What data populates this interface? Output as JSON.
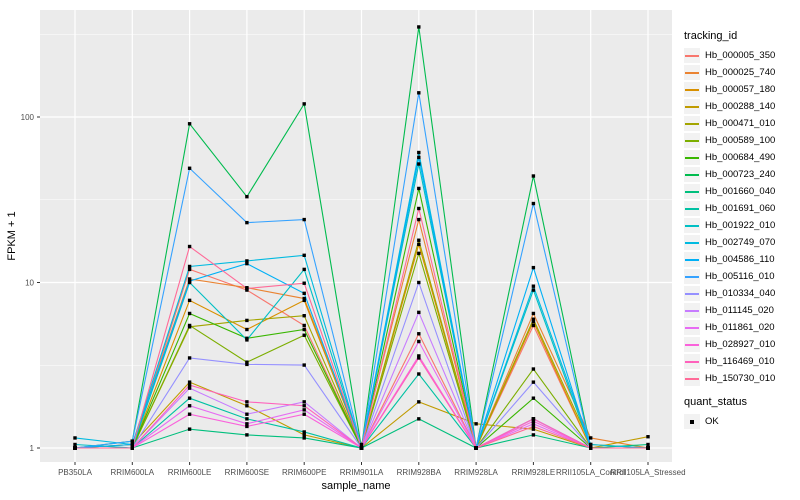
{
  "figure": {
    "bg": "#FFFFFF",
    "panel_bg": "#EBEBEB",
    "grid_color": "#FFFFFF",
    "axis_text_color": "#4D4D4D",
    "axis_title_color": "#000000",
    "marker_color": "#000000"
  },
  "chart_data": {
    "type": "line",
    "title": "",
    "xlabel": "sample_name",
    "ylabel": "FPKM + 1",
    "y_scale": "log10",
    "y_tick_labels": [
      "1",
      "10",
      "100"
    ],
    "y_ticks": [
      1,
      10,
      100
    ],
    "y_minor_ticks": [
      3.162,
      31.62,
      316.2
    ],
    "ylim": [
      0.82,
      440
    ],
    "grid": "on",
    "legend_position": "right",
    "legend_title": "tracking_id",
    "legend2_title": "quant_status",
    "legend2_items": [
      {
        "label": "OK",
        "marker": "black-square"
      }
    ],
    "marker": "black-square",
    "categories": [
      "PB350LA",
      "RRIM600LA",
      "RRIM600LE",
      "RRIM600SE",
      "RRIM600PE",
      "RRIM901LA",
      "RRIM928BA",
      "RRIM928LA",
      "RRIM928LE",
      "RRII105LA_Control",
      "RRII105LA_Stressed"
    ],
    "series": [
      {
        "name": "Hb_000005_350",
        "color": "#F8766D",
        "values": [
          1.0,
          1.0,
          12,
          9.0,
          5.5,
          1.0,
          4.9,
          1.0,
          5.5,
          1.0,
          1.0
        ]
      },
      {
        "name": "Hb_000025_740",
        "color": "#EA8331",
        "values": [
          1.0,
          1.05,
          10.5,
          9.3,
          8.0,
          1.05,
          24,
          1.0,
          6.5,
          1.15,
          1.0
        ]
      },
      {
        "name": "Hb_000057_180",
        "color": "#D89000",
        "values": [
          1.0,
          1.0,
          7.8,
          5.2,
          7.8,
          1.0,
          17,
          1.0,
          5.8,
          1.0,
          1.0
        ]
      },
      {
        "name": "Hb_000288_140",
        "color": "#C09B00",
        "values": [
          1.0,
          1.05,
          2.5,
          1.8,
          1.2,
          1.0,
          1.9,
          1.4,
          1.3,
          1.0,
          1.17
        ]
      },
      {
        "name": "Hb_000471_010",
        "color": "#A3A500",
        "values": [
          1.0,
          1.0,
          5.4,
          5.9,
          6.3,
          1.0,
          18,
          1.0,
          6.0,
          1.05,
          1.0
        ]
      },
      {
        "name": "Hb_000589_100",
        "color": "#7CAE00",
        "values": [
          1.0,
          1.0,
          5.5,
          3.3,
          4.8,
          1.0,
          15,
          1.0,
          3.0,
          1.0,
          1.0
        ]
      },
      {
        "name": "Hb_000684_490",
        "color": "#39B600",
        "values": [
          1.0,
          1.0,
          6.5,
          4.6,
          5.2,
          1.0,
          37,
          1.0,
          2.0,
          1.0,
          1.0
        ]
      },
      {
        "name": "Hb_000723_240",
        "color": "#00BB4E",
        "values": [
          1.0,
          1.1,
          91,
          33,
          120,
          1.0,
          350,
          1.0,
          44,
          1.0,
          1.0
        ]
      },
      {
        "name": "Hb_001660_040",
        "color": "#00BF7D",
        "values": [
          1.0,
          1.0,
          1.3,
          1.2,
          1.15,
          1.0,
          1.5,
          1.0,
          1.2,
          1.0,
          1.05
        ]
      },
      {
        "name": "Hb_001691_060",
        "color": "#00C1A3",
        "values": [
          1.0,
          1.0,
          2.0,
          1.5,
          1.25,
          1.0,
          2.8,
          1.0,
          1.5,
          1.0,
          1.0
        ]
      },
      {
        "name": "Hb_001922_010",
        "color": "#00BFC4",
        "values": [
          1.05,
          1.0,
          10,
          4.5,
          12,
          1.0,
          52,
          1.0,
          9.0,
          1.0,
          1.0
        ]
      },
      {
        "name": "Hb_002749_070",
        "color": "#00BAE0",
        "values": [
          1.15,
          1.05,
          12.5,
          13.5,
          14.6,
          1.0,
          61,
          1.0,
          9.5,
          1.05,
          1.0
        ]
      },
      {
        "name": "Hb_004586_110",
        "color": "#00B0F6",
        "values": [
          1.0,
          1.05,
          10.2,
          13,
          8.6,
          1.0,
          57,
          1.0,
          12.3,
          1.0,
          1.0
        ]
      },
      {
        "name": "Hb_005116_010",
        "color": "#35A2FF",
        "values": [
          1.0,
          1.1,
          49,
          23,
          24,
          1.0,
          140,
          1.0,
          30,
          1.0,
          1.0
        ]
      },
      {
        "name": "Hb_010334_040",
        "color": "#9590FF",
        "values": [
          1.0,
          1.0,
          3.5,
          3.2,
          3.17,
          1.0,
          10,
          1.0,
          2.5,
          1.0,
          1.0
        ]
      },
      {
        "name": "Hb_011145_020",
        "color": "#C77CFF",
        "values": [
          1.0,
          1.0,
          2.3,
          1.6,
          1.9,
          1.0,
          6.6,
          1.0,
          1.5,
          1.0,
          1.0
        ]
      },
      {
        "name": "Hb_011861_020",
        "color": "#E76BF3",
        "values": [
          1.0,
          1.0,
          1.8,
          1.4,
          1.7,
          1.0,
          4.4,
          1.0,
          1.4,
          1.0,
          1.0
        ]
      },
      {
        "name": "Hb_028927_010",
        "color": "#FA62DB",
        "values": [
          1.0,
          1.0,
          1.6,
          1.35,
          1.6,
          1.0,
          3.6,
          1.0,
          1.45,
          1.0,
          1.0
        ]
      },
      {
        "name": "Hb_116469_010",
        "color": "#FF62BC",
        "values": [
          1.0,
          1.0,
          2.4,
          1.9,
          1.8,
          1.0,
          3.5,
          1.0,
          1.5,
          1.0,
          1.0
        ]
      },
      {
        "name": "Hb_150730_010",
        "color": "#FF6A98",
        "values": [
          1.0,
          1.0,
          16.5,
          9.2,
          9.9,
          1.0,
          28,
          1.0,
          1.35,
          1.0,
          1.0
        ]
      }
    ]
  }
}
